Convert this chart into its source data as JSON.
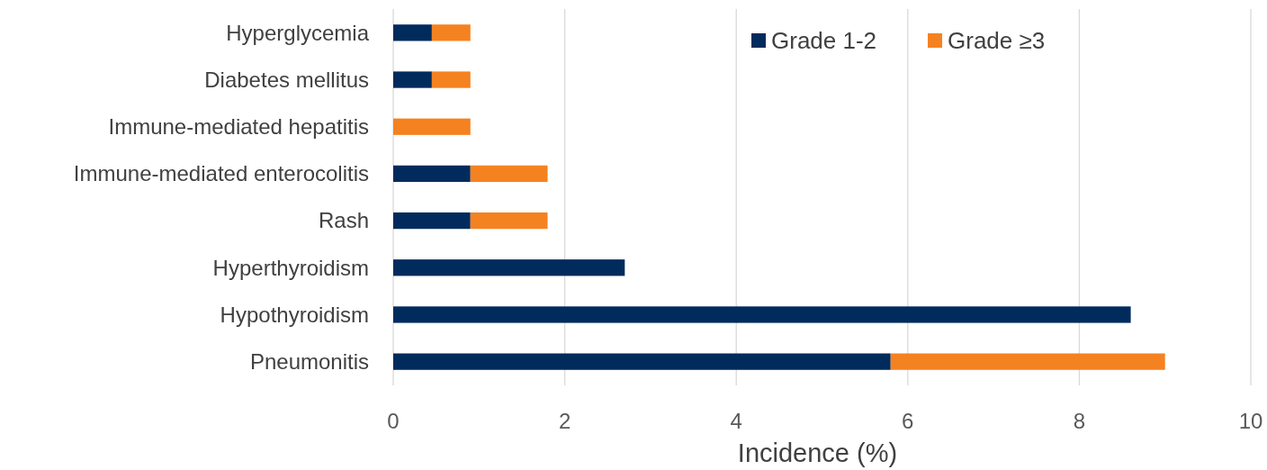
{
  "chart_data": {
    "type": "bar",
    "orientation": "horizontal",
    "stacked": true,
    "xlabel": "Incidence (%)",
    "categories": [
      "Hyperglycemia",
      "Diabetes mellitus",
      "Immune-mediated hepatitis",
      "Immune-mediated enterocolitis",
      "Rash",
      "Hyperthyroidism",
      "Hypothyroidism",
      "Pneumonitis"
    ],
    "series": [
      {
        "name": "Grade 1-2",
        "color": "#002b5c",
        "values": [
          0.45,
          0.45,
          0,
          0.9,
          0.9,
          2.7,
          8.6,
          5.8
        ]
      },
      {
        "name": "Grade ≥3",
        "color": "#f58220",
        "values": [
          0.45,
          0.45,
          0.9,
          0.9,
          0.9,
          0,
          0,
          3.2
        ]
      }
    ],
    "xlim": [
      0,
      10
    ],
    "xticks": [
      0,
      2,
      4,
      6,
      8,
      10
    ],
    "grid": "x",
    "legend": "top right"
  }
}
